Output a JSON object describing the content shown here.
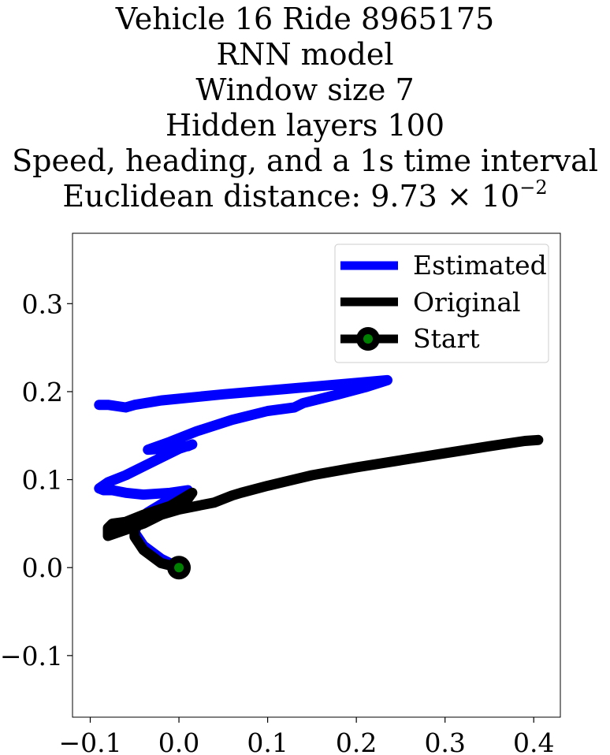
{
  "title_lines": [
    "Vehicle 16 Ride 8965175",
    "RNN model",
    "Window size 7",
    "Hidden layers 100",
    "Speed, heading, and a 1s time interval"
  ],
  "title_metric_prefix": "Euclidean distance: 9.73 × 10",
  "title_metric_exponent": "−2",
  "chart_data": {
    "type": "line",
    "xlim": [
      -0.12,
      0.43
    ],
    "ylim": [
      -0.17,
      0.38
    ],
    "xticks": [
      -0.1,
      0.0,
      0.1,
      0.2,
      0.3,
      0.4
    ],
    "xtick_labels": [
      "−0.1",
      "0.0",
      "0.1",
      "0.2",
      "0.3",
      "0.4"
    ],
    "yticks": [
      -0.1,
      0.0,
      0.1,
      0.2,
      0.3
    ],
    "ytick_labels": [
      "−0.1",
      "0.0",
      "0.1",
      "0.2",
      "0.3"
    ],
    "grid": false,
    "legend_position": "top-right",
    "series": [
      {
        "name": "Estimated",
        "color": "#0000ff",
        "points": [
          [
            0.0,
            0.0
          ],
          [
            -0.02,
            0.01
          ],
          [
            -0.04,
            0.025
          ],
          [
            -0.05,
            0.04
          ],
          [
            -0.045,
            0.055
          ],
          [
            -0.035,
            0.063
          ],
          [
            -0.015,
            0.075
          ],
          [
            0.005,
            0.085
          ],
          [
            0.01,
            0.088
          ],
          [
            -0.01,
            0.085
          ],
          [
            -0.04,
            0.083
          ],
          [
            -0.06,
            0.085
          ],
          [
            -0.075,
            0.088
          ],
          [
            -0.085,
            0.088
          ],
          [
            -0.09,
            0.09
          ],
          [
            -0.08,
            0.097
          ],
          [
            -0.06,
            0.105
          ],
          [
            -0.04,
            0.115
          ],
          [
            -0.02,
            0.125
          ],
          [
            0.0,
            0.135
          ],
          [
            0.015,
            0.14
          ],
          [
            0.01,
            0.138
          ],
          [
            -0.02,
            0.135
          ],
          [
            -0.035,
            0.134
          ],
          [
            -0.01,
            0.143
          ],
          [
            0.02,
            0.155
          ],
          [
            0.06,
            0.168
          ],
          [
            0.1,
            0.178
          ],
          [
            0.13,
            0.182
          ],
          [
            0.14,
            0.187
          ],
          [
            0.18,
            0.197
          ],
          [
            0.21,
            0.205
          ],
          [
            0.235,
            0.213
          ],
          [
            0.2,
            0.21
          ],
          [
            0.12,
            0.203
          ],
          [
            0.05,
            0.197
          ],
          [
            -0.02,
            0.19
          ],
          [
            -0.05,
            0.185
          ],
          [
            -0.06,
            0.182
          ],
          [
            -0.08,
            0.185
          ],
          [
            -0.09,
            0.185
          ]
        ]
      },
      {
        "name": "Original",
        "color": "#000000",
        "points": [
          [
            0.0,
            0.0
          ],
          [
            -0.02,
            0.005
          ],
          [
            -0.04,
            0.02
          ],
          [
            -0.05,
            0.035
          ],
          [
            -0.05,
            0.05
          ],
          [
            -0.03,
            0.058
          ],
          [
            -0.01,
            0.068
          ],
          [
            0.01,
            0.078
          ],
          [
            0.015,
            0.085
          ],
          [
            -0.01,
            0.07
          ],
          [
            -0.04,
            0.06
          ],
          [
            -0.06,
            0.052
          ],
          [
            -0.075,
            0.05
          ],
          [
            -0.08,
            0.045
          ],
          [
            -0.08,
            0.036
          ],
          [
            -0.06,
            0.043
          ],
          [
            -0.04,
            0.05
          ],
          [
            -0.02,
            0.06
          ],
          [
            0.0,
            0.066
          ],
          [
            0.04,
            0.074
          ],
          [
            0.06,
            0.082
          ],
          [
            0.07,
            0.085
          ],
          [
            0.1,
            0.093
          ],
          [
            0.15,
            0.105
          ],
          [
            0.2,
            0.114
          ],
          [
            0.25,
            0.122
          ],
          [
            0.3,
            0.13
          ],
          [
            0.35,
            0.138
          ],
          [
            0.39,
            0.144
          ],
          [
            0.405,
            0.145
          ]
        ]
      }
    ],
    "start_point": {
      "name": "Start",
      "x": 0.0,
      "y": 0.0,
      "outer_color": "#000000",
      "inner_color": "#008000"
    }
  }
}
